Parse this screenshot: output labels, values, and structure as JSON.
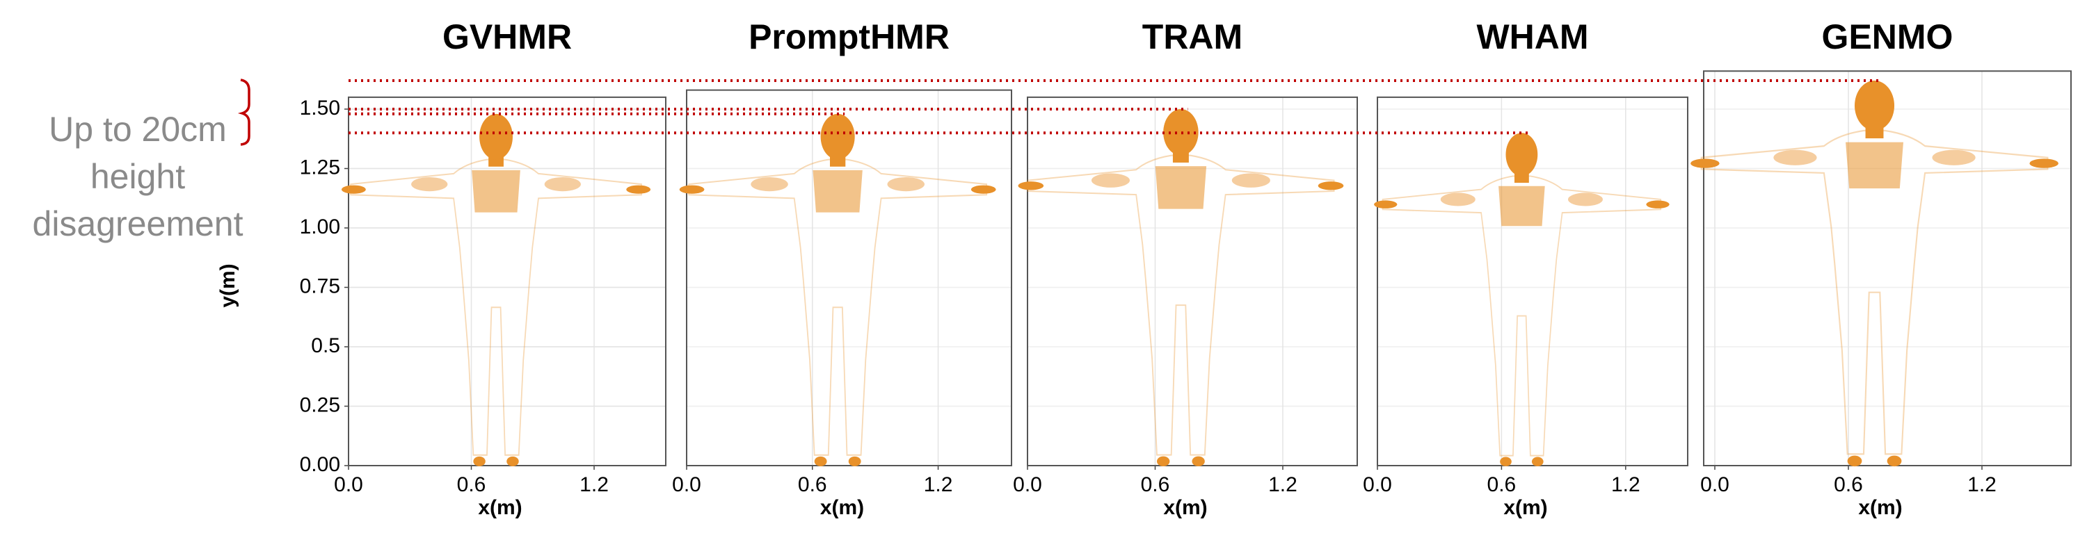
{
  "chart_data": [
    {
      "type": "pointcloud",
      "title": "GVHMR",
      "xlabel": "x(m)",
      "ylabel": "y(m)",
      "height": 1.48,
      "color": "#e8912a",
      "xlim": [
        0,
        1.55
      ],
      "xticks": [
        {
          "value": 0,
          "label": "0.0"
        },
        0.6,
        1.2
      ],
      "ylim": [
        0,
        1.55
      ],
      "yticks": [
        {
          "value": 0,
          "label": "0.00"
        },
        0.25,
        0.5,
        0.75,
        {
          "value": 1,
          "label": "1.00"
        },
        1.25,
        {
          "value": 1.5,
          "label": "1.50"
        }
      ],
      "grid": true
    },
    {
      "type": "pointcloud",
      "title": "PromptHMR",
      "xlabel": "x(m)",
      "height": 1.48,
      "color": "#e8912a",
      "xlim": [
        0,
        1.55
      ],
      "xticks": [
        {
          "value": 0,
          "label": "0.0"
        },
        0.6,
        1.2
      ],
      "ylim": [
        0,
        1.58
      ],
      "grid": true
    },
    {
      "type": "pointcloud",
      "title": "TRAM",
      "xlabel": "x(m)",
      "height": 1.5,
      "color": "#e8912a",
      "xlim": [
        0,
        1.55
      ],
      "xticks": [
        {
          "value": 0,
          "label": "0.0"
        },
        0.6,
        1.2
      ],
      "ylim": [
        0,
        1.55
      ],
      "grid": true
    },
    {
      "type": "pointcloud",
      "title": "WHAM",
      "xlabel": "x(m)",
      "height": 1.4,
      "color": "#e8912a",
      "xlim": [
        0,
        1.5
      ],
      "xticks": [
        {
          "value": 0,
          "label": "0.0"
        },
        0.6,
        1.2
      ],
      "ylim": [
        0,
        1.55
      ],
      "grid": true
    },
    {
      "type": "pointcloud",
      "title": "GENMO",
      "xlabel": "x(m)",
      "height": 1.62,
      "color": "#e8912a",
      "xlim": [
        -0.05,
        1.6
      ],
      "xticks": [
        {
          "value": 0,
          "label": "0.0"
        },
        0.6,
        1.2
      ],
      "ylim": [
        0,
        1.66
      ],
      "grid": true
    }
  ],
  "annotation": {
    "lines": [
      "Up to 20cm",
      "height",
      "disagreement"
    ],
    "color": "#8a8a8a",
    "line_color": "#c00000"
  }
}
